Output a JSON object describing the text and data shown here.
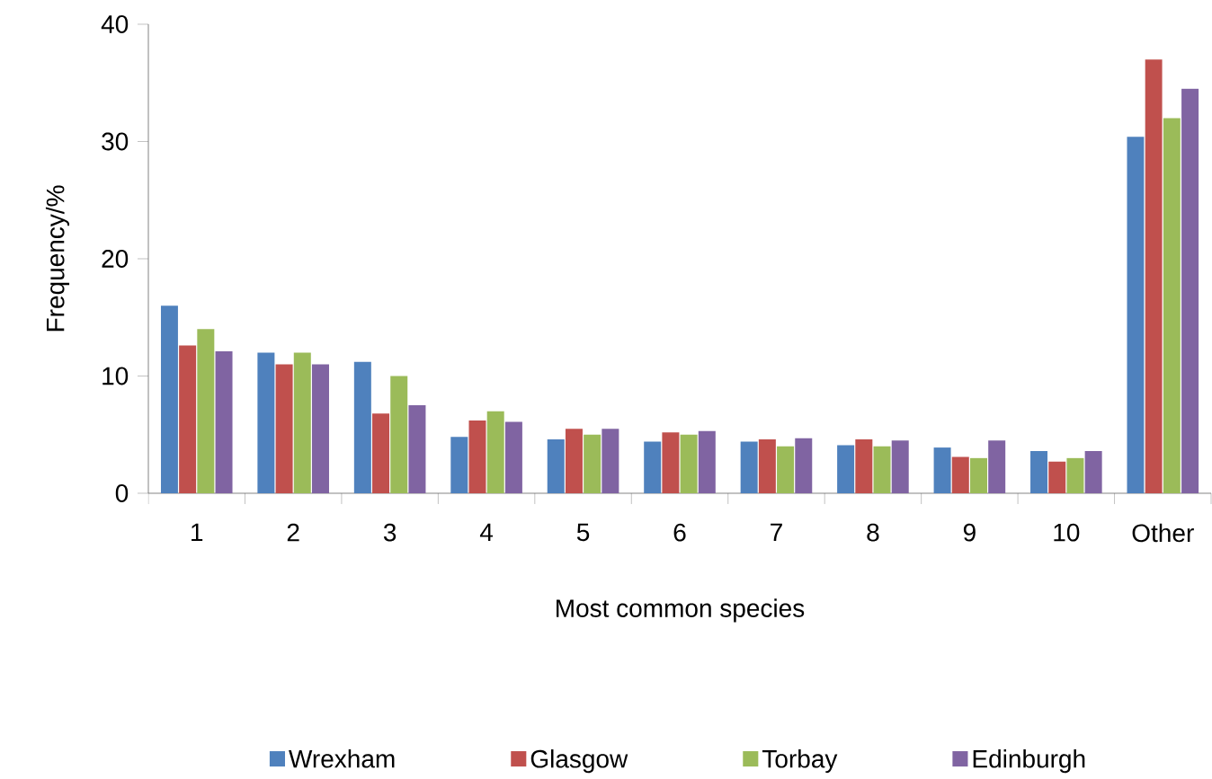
{
  "chart_data": {
    "type": "bar",
    "xlabel": "Most common species",
    "ylabel": "Frequency/%",
    "categories": [
      "1",
      "2",
      "3",
      "4",
      "5",
      "6",
      "7",
      "8",
      "9",
      "10",
      "Other"
    ],
    "series": [
      {
        "name": "Wrexham",
        "color": "#4f81bd",
        "values": [
          16.0,
          12.0,
          11.2,
          4.8,
          4.6,
          4.4,
          4.4,
          4.1,
          3.9,
          3.6,
          30.4
        ]
      },
      {
        "name": "Glasgow",
        "color": "#c0504d",
        "values": [
          12.6,
          11.0,
          6.8,
          6.2,
          5.5,
          5.2,
          4.6,
          4.6,
          3.1,
          2.7,
          37.0
        ]
      },
      {
        "name": "Torbay",
        "color": "#9bbb59",
        "values": [
          14.0,
          12.0,
          10.0,
          7.0,
          5.0,
          5.0,
          4.0,
          4.0,
          3.0,
          3.0,
          32.0
        ]
      },
      {
        "name": "Edinburgh",
        "color": "#8064a2",
        "values": [
          12.1,
          11.0,
          7.5,
          6.1,
          5.5,
          5.3,
          4.7,
          4.5,
          4.5,
          3.6,
          34.5
        ]
      }
    ],
    "ylim": [
      0,
      40
    ],
    "yticks": [
      0,
      10,
      20,
      30,
      40
    ],
    "grid": false,
    "legend": "bottom"
  }
}
